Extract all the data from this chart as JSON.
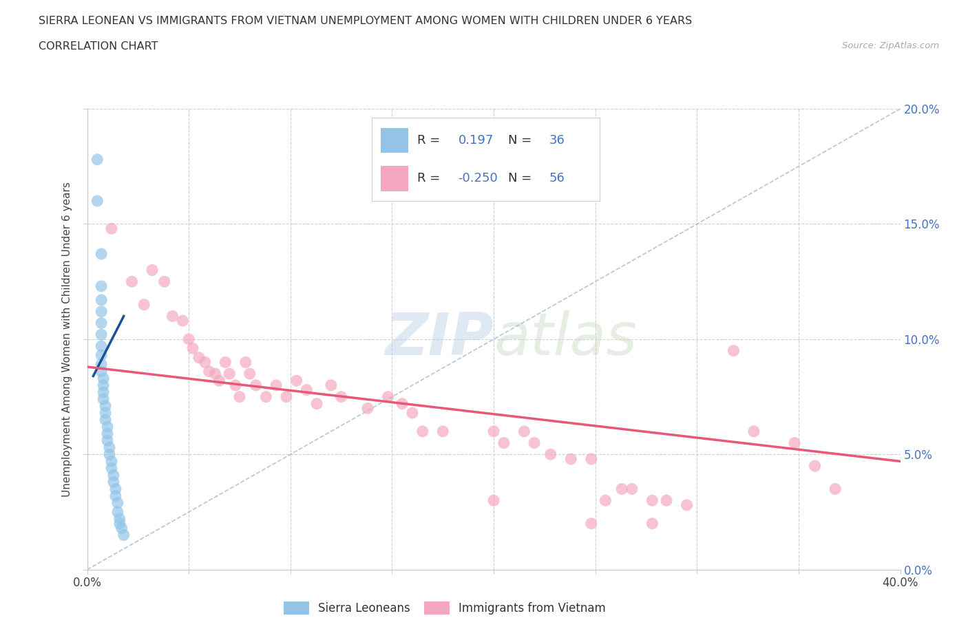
{
  "title": "SIERRA LEONEAN VS IMMIGRANTS FROM VIETNAM UNEMPLOYMENT AMONG WOMEN WITH CHILDREN UNDER 6 YEARS",
  "subtitle": "CORRELATION CHART",
  "source": "Source: ZipAtlas.com",
  "ylabel": "Unemployment Among Women with Children Under 6 years",
  "watermark_zip": "ZIP",
  "watermark_atlas": "atlas",
  "xlim": [
    0.0,
    0.4
  ],
  "ylim": [
    0.0,
    0.2
  ],
  "xticks": [
    0.0,
    0.05,
    0.1,
    0.15,
    0.2,
    0.25,
    0.3,
    0.35,
    0.4
  ],
  "yticks": [
    0.0,
    0.05,
    0.1,
    0.15,
    0.2
  ],
  "legend_label1": "Sierra Leoneans",
  "legend_label2": "Immigrants from Vietnam",
  "R1": "0.197",
  "N1": "36",
  "R2": "-0.250",
  "N2": "56",
  "color_blue": "#93c4e8",
  "color_pink": "#f4a8c0",
  "color_blue_line": "#1a5296",
  "color_pink_line": "#e85878",
  "color_dash": "#a0b8d0",
  "scatter_blue": [
    [
      0.005,
      0.178
    ],
    [
      0.005,
      0.16
    ],
    [
      0.007,
      0.137
    ],
    [
      0.007,
      0.123
    ],
    [
      0.007,
      0.117
    ],
    [
      0.007,
      0.112
    ],
    [
      0.007,
      0.107
    ],
    [
      0.007,
      0.102
    ],
    [
      0.007,
      0.097
    ],
    [
      0.007,
      0.093
    ],
    [
      0.007,
      0.089
    ],
    [
      0.007,
      0.086
    ],
    [
      0.008,
      0.083
    ],
    [
      0.008,
      0.08
    ],
    [
      0.008,
      0.077
    ],
    [
      0.008,
      0.074
    ],
    [
      0.009,
      0.071
    ],
    [
      0.009,
      0.068
    ],
    [
      0.009,
      0.065
    ],
    [
      0.01,
      0.062
    ],
    [
      0.01,
      0.059
    ],
    [
      0.01,
      0.056
    ],
    [
      0.011,
      0.053
    ],
    [
      0.011,
      0.05
    ],
    [
      0.012,
      0.047
    ],
    [
      0.012,
      0.044
    ],
    [
      0.013,
      0.041
    ],
    [
      0.013,
      0.038
    ],
    [
      0.014,
      0.035
    ],
    [
      0.014,
      0.032
    ],
    [
      0.015,
      0.029
    ],
    [
      0.015,
      0.025
    ],
    [
      0.016,
      0.022
    ],
    [
      0.016,
      0.02
    ],
    [
      0.017,
      0.018
    ],
    [
      0.018,
      0.015
    ]
  ],
  "scatter_pink": [
    [
      0.012,
      0.148
    ],
    [
      0.022,
      0.125
    ],
    [
      0.028,
      0.115
    ],
    [
      0.032,
      0.13
    ],
    [
      0.038,
      0.125
    ],
    [
      0.042,
      0.11
    ],
    [
      0.047,
      0.108
    ],
    [
      0.05,
      0.1
    ],
    [
      0.052,
      0.096
    ],
    [
      0.055,
      0.092
    ],
    [
      0.058,
      0.09
    ],
    [
      0.06,
      0.086
    ],
    [
      0.063,
      0.085
    ],
    [
      0.065,
      0.082
    ],
    [
      0.068,
      0.09
    ],
    [
      0.07,
      0.085
    ],
    [
      0.073,
      0.08
    ],
    [
      0.075,
      0.075
    ],
    [
      0.078,
      0.09
    ],
    [
      0.08,
      0.085
    ],
    [
      0.083,
      0.08
    ],
    [
      0.088,
      0.075
    ],
    [
      0.093,
      0.08
    ],
    [
      0.098,
      0.075
    ],
    [
      0.103,
      0.082
    ],
    [
      0.108,
      0.078
    ],
    [
      0.113,
      0.072
    ],
    [
      0.12,
      0.08
    ],
    [
      0.125,
      0.075
    ],
    [
      0.138,
      0.07
    ],
    [
      0.148,
      0.075
    ],
    [
      0.155,
      0.072
    ],
    [
      0.16,
      0.068
    ],
    [
      0.165,
      0.06
    ],
    [
      0.175,
      0.06
    ],
    [
      0.2,
      0.06
    ],
    [
      0.205,
      0.055
    ],
    [
      0.215,
      0.06
    ],
    [
      0.22,
      0.055
    ],
    [
      0.228,
      0.05
    ],
    [
      0.238,
      0.048
    ],
    [
      0.248,
      0.048
    ],
    [
      0.255,
      0.03
    ],
    [
      0.263,
      0.035
    ],
    [
      0.268,
      0.035
    ],
    [
      0.278,
      0.03
    ],
    [
      0.285,
      0.03
    ],
    [
      0.295,
      0.028
    ],
    [
      0.318,
      0.095
    ],
    [
      0.328,
      0.06
    ],
    [
      0.348,
      0.055
    ],
    [
      0.358,
      0.045
    ],
    [
      0.368,
      0.035
    ],
    [
      0.2,
      0.03
    ],
    [
      0.248,
      0.02
    ],
    [
      0.278,
      0.02
    ]
  ],
  "blue_line_x": [
    0.003,
    0.018
  ],
  "blue_line_y": [
    0.084,
    0.11
  ],
  "pink_line_x": [
    0.0,
    0.4
  ],
  "pink_line_y": [
    0.088,
    0.047
  ],
  "diag_line_x": [
    0.0,
    0.4
  ],
  "diag_line_y": [
    0.0,
    0.2
  ]
}
